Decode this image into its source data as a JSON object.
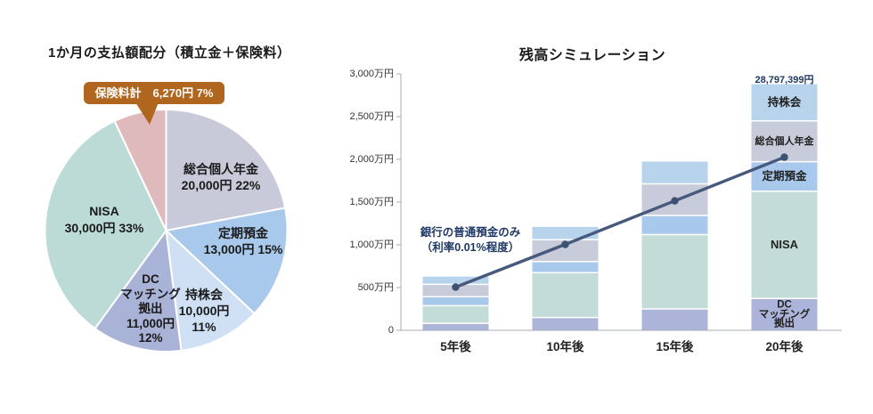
{
  "page_background": "#ffffff",
  "chart_data": [
    {
      "type": "pie",
      "title": "1か月の支払額配分（積立金＋保険料）",
      "unit": "円/月",
      "clockwise_from_top": true,
      "slices": [
        {
          "label": "総合個人年金",
          "amount_yen": 20000,
          "pct": 22,
          "display_lines": [
            "総合個人年金",
            "20,000円 22%"
          ],
          "color": "#c8cad9"
        },
        {
          "label": "定期預金",
          "amount_yen": 13000,
          "pct": 15,
          "display_lines": [
            "定期預金",
            "13,000円 15%"
          ],
          "color": "#a9c9ec"
        },
        {
          "label": "持株会",
          "amount_yen": 10000,
          "pct": 11,
          "display_lines": [
            "持株会",
            "10,000円",
            "11%"
          ],
          "color": "#d0e0f4"
        },
        {
          "label": "DCマッチング拠出",
          "amount_yen": 11000,
          "pct": 12,
          "display_lines": [
            "DC",
            "マッチング",
            "拠出",
            "11,000円",
            "12%"
          ],
          "color": "#a9b2d7"
        },
        {
          "label": "NISA",
          "amount_yen": 30000,
          "pct": 33,
          "display_lines": [
            "NISA",
            "30,000円 33%"
          ],
          "color": "#bcdbd7"
        },
        {
          "label": "保険料計",
          "amount_yen": 6270,
          "pct": 7,
          "display_lines": [],
          "color": "#dfbabc"
        }
      ],
      "callout": {
        "text": "保険料計　6,270円 7%",
        "bg_color": "#b0661e",
        "text_color": "#ffffff",
        "points_to": "保険料計"
      }
    },
    {
      "type": "bar",
      "subtype": "stacked-bars-with-line",
      "title": "残高シミュレーション",
      "categories": [
        "5年後",
        "10年後",
        "15年後",
        "20年後"
      ],
      "unit": "万円",
      "ylim": [
        0,
        3000
      ],
      "grid": false,
      "axis_color": "#a6adb6",
      "y_ticks": [
        {
          "value": 3000,
          "label": "3,000万円"
        },
        {
          "value": 2500,
          "label": "2,500万円"
        },
        {
          "value": 2000,
          "label": "2,000万円"
        },
        {
          "value": 1500,
          "label": "1,500万円"
        },
        {
          "value": 1000,
          "label": "1,000万円"
        },
        {
          "value": 500,
          "label": "500万円"
        },
        {
          "value": 0,
          "label": "0"
        }
      ],
      "stack_order": "bottom to top",
      "series": [
        {
          "name": "DCマッチング拠出",
          "label_lines": [
            "DC",
            "マッチング",
            "拠出"
          ],
          "color": "#acb4d9",
          "values": [
            80,
            150,
            250,
            372
          ]
        },
        {
          "name": "NISA",
          "label_lines": [
            "NISA"
          ],
          "color": "#c3dcd8",
          "values": [
            208,
            525,
            870,
            1255
          ]
        },
        {
          "name": "定期預金",
          "label_lines": [
            "定期預金"
          ],
          "color": "#a9c9ec",
          "values": [
            105,
            130,
            224,
            346
          ]
        },
        {
          "name": "総合個人年金",
          "label_lines": [
            "総合個人年金"
          ],
          "color": "#c8cbd9",
          "values": [
            145,
            255,
            370,
            478
          ]
        },
        {
          "name": "持株会",
          "label_lines": [
            "持株会"
          ],
          "color": "#b8d4ec",
          "values": [
            90,
            150,
            260,
            428
          ]
        }
      ],
      "segment_labels_shown_on_category": "20年後",
      "line_series": {
        "name": "銀行の普通預金のみ（利率0.01%程度）",
        "values": [
          505,
          1005,
          1515,
          2025
        ],
        "color": "#47597c",
        "point_color": "#3d5170"
      },
      "annotation": {
        "lines": [
          "銀行の普通預金のみ",
          "（利率0.01%程度）"
        ],
        "color": "#1f3864"
      },
      "total_label": {
        "text": "28,797,399円",
        "category": "20年後",
        "color": "#1f3864"
      }
    }
  ]
}
